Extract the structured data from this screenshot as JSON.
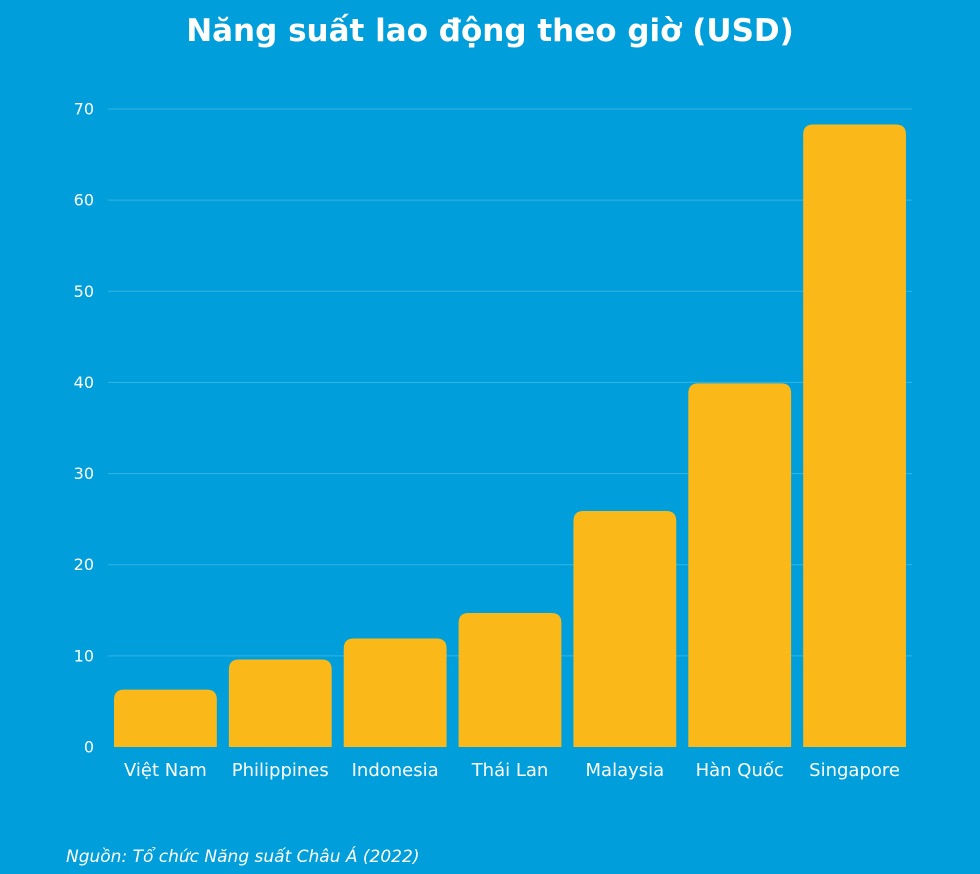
{
  "chart_data": {
    "type": "bar",
    "title": "Năng suất lao động theo giờ (USD)",
    "categories": [
      "Việt Nam",
      "Philippines",
      "Indonesia",
      "Thái Lan",
      "Malaysia",
      "Hàn Quốc",
      "Singapore"
    ],
    "values": [
      6.3,
      9.6,
      11.9,
      14.7,
      25.9,
      39.9,
      68.3
    ],
    "ylim": [
      0,
      70
    ],
    "yticks": [
      0,
      10,
      20,
      30,
      40,
      50,
      60,
      70
    ],
    "grid": true,
    "xlabel": "",
    "ylabel": "",
    "colors": {
      "background": "#009fdb",
      "bar": "#fbb919",
      "gridline": "#33b5e5",
      "text": "#ffffff"
    }
  },
  "source": "Nguồn: Tổ chức Năng suất Châu Á (2022)"
}
